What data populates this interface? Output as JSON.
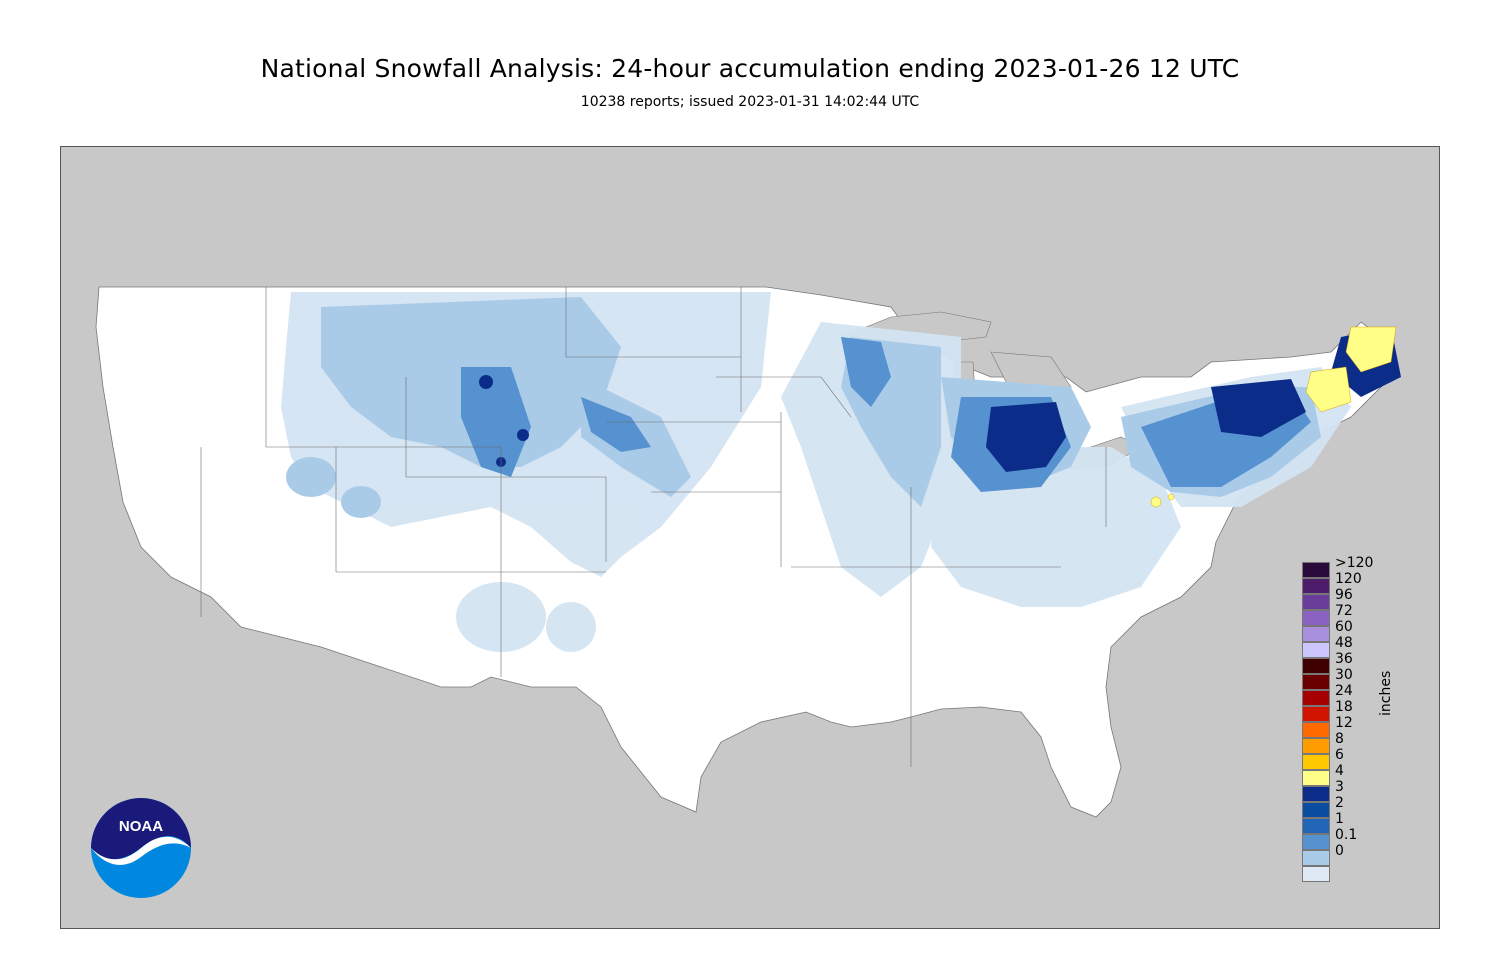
{
  "header": {
    "title": "National Snowfall Analysis: 24-hour accumulation ending 2023-01-26 12 UTC",
    "subtitle": "10238 reports; issued 2023-01-31 14:02:44 UTC"
  },
  "legend": {
    "units": "inches",
    "levels": [
      {
        "label": ">120",
        "color": "#2a0a3a"
      },
      {
        "label": "120",
        "color": "#4d1c6b"
      },
      {
        "label": "96",
        "color": "#6a3d9a"
      },
      {
        "label": "72",
        "color": "#8a63c2"
      },
      {
        "label": "60",
        "color": "#a890dc"
      },
      {
        "label": "48",
        "color": "#ccc6ff"
      },
      {
        "label": "36",
        "color": "#3f0000"
      },
      {
        "label": "30",
        "color": "#6b0000"
      },
      {
        "label": "24",
        "color": "#a50000"
      },
      {
        "label": "18",
        "color": "#d11400"
      },
      {
        "label": "12",
        "color": "#ff6a00"
      },
      {
        "label": "8",
        "color": "#ff9d00"
      },
      {
        "label": "6",
        "color": "#ffc800"
      },
      {
        "label": "4",
        "color": "#ffff88"
      },
      {
        "label": "3",
        "color": "#0c2c8a"
      },
      {
        "label": "2",
        "color": "#0a4da0"
      },
      {
        "label": "1",
        "color": "#2266b8"
      },
      {
        "label": "0.1",
        "color": "#5592cf"
      },
      {
        "label": "0",
        "color": "#a9cbe8"
      }
    ],
    "extra_swatches": [
      "#dfe9f4",
      "#ffffff"
    ]
  },
  "logo": {
    "text": "NOAA"
  },
  "colors": {
    "ocean_land_outside": "#c8c8c8",
    "conus": "#ffffff",
    "snow_light": "#d4e4f2",
    "snow_medium": "#a9cbe8",
    "snow_heavy": "#5592cf",
    "snow_deep": "#0c2c8a",
    "snow_yellow": "#ffff88"
  }
}
